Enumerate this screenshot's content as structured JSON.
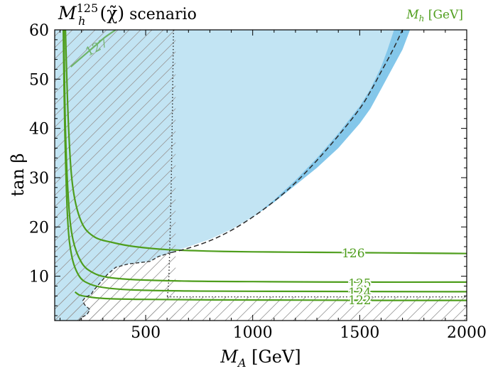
{
  "chart_data": {
    "type": "line",
    "title": "M_h^125(χ̃) scenario",
    "title_main": "M",
    "title_sub": "h",
    "title_sup": "125",
    "title_paren": "(χ̃)",
    "title_rest": " scenario",
    "xlabel_main": "M",
    "xlabel_sub": "A",
    "xlabel_unit": " [GeV]",
    "ylabel": "tan β",
    "xlim": [
      75,
      2000
    ],
    "ylim": [
      1,
      60
    ],
    "xticks": [
      500,
      1000,
      1500,
      2000
    ],
    "xtick_labels": [
      "500",
      "1000",
      "1500",
      "2000"
    ],
    "yticks": [
      10,
      20,
      30,
      40,
      50,
      60
    ],
    "ytick_labels": [
      "10",
      "20",
      "30",
      "40",
      "50",
      "60"
    ],
    "legend_main": "M",
    "legend_sub": "h",
    "legend_unit": " [GeV]",
    "colors": {
      "excluded_fill": "#c2e4f3",
      "band_fill": "#84c7ea",
      "contour": "#4f9e1d",
      "contour_light": "#6fb46a",
      "hatch": "#9a9a9a",
      "boundary": "#2b2b2b",
      "axis": "#000000"
    },
    "excluded_region_upper": {
      "x": [
        640,
        700,
        800,
        900,
        1000,
        1100,
        1200,
        1300,
        1400,
        1500,
        1550,
        1600,
        1630,
        1660
      ],
      "y": [
        15.2,
        16.0,
        17.5,
        19.5,
        22.0,
        25.5,
        29.5,
        34.0,
        39.0,
        44.5,
        48.0,
        52.5,
        56.0,
        60.0
      ]
    },
    "excluded_region_band_outer": {
      "x": [
        640,
        700,
        800,
        900,
        1000,
        1100,
        1200,
        1300,
        1400,
        1500,
        1550,
        1600,
        1650,
        1700,
        1735
      ],
      "y": [
        15.2,
        16.0,
        17.5,
        19.5,
        22.0,
        25.0,
        28.5,
        32.0,
        36.0,
        41.0,
        44.0,
        48.0,
        52.0,
        56.0,
        60.0
      ]
    },
    "expected_exclusion_dashed": {
      "x": [
        620,
        700,
        800,
        900,
        1000,
        1100,
        1200,
        1300,
        1400,
        1500,
        1550,
        1600,
        1650,
        1700
      ],
      "y": [
        14.8,
        15.7,
        17.2,
        19.3,
        22.0,
        25.2,
        29.0,
        33.5,
        38.5,
        44.0,
        47.5,
        51.5,
        55.5,
        60.0
      ]
    },
    "excluded_region_lower_boundary": {
      "x": [
        620,
        560,
        520,
        480,
        420,
        360,
        320,
        290,
        270,
        255,
        245,
        232,
        220,
        205,
        215,
        240,
        225,
        200,
        190
      ],
      "y": [
        14.8,
        14.0,
        13.0,
        12.8,
        12.5,
        11.8,
        10.3,
        8.8,
        7.8,
        7.0,
        6.3,
        6.0,
        5.8,
        5.0,
        4.2,
        3.2,
        2.2,
        1.6,
        1.0
      ]
    },
    "hatched_region": {
      "x_max_upper": 640,
      "y_max_lower": 5.8,
      "boundary_dotted_x": [
        630,
        620,
        610,
        604,
        600
      ],
      "boundary_dotted_y": [
        60,
        30,
        12,
        7,
        5.8
      ]
    },
    "contours": [
      {
        "name": "126",
        "label": "126",
        "label_at": [
          1470,
          14.7
        ],
        "x": [
          125,
          140,
          160,
          200,
          260,
          350,
          450,
          600,
          800,
          1000,
          1300,
          1600,
          2000
        ],
        "y": [
          60,
          40,
          28,
          21,
          18.0,
          16.8,
          16.0,
          15.4,
          15.1,
          14.95,
          14.85,
          14.75,
          14.6
        ]
      },
      {
        "name": "125",
        "label": "125",
        "label_at": [
          1500,
          8.6
        ],
        "x": [
          118,
          125,
          140,
          160,
          200,
          250,
          320,
          450,
          700,
          1000,
          1500,
          2000
        ],
        "y": [
          60,
          40,
          25,
          17.5,
          12.8,
          10.8,
          9.8,
          9.3,
          9.0,
          8.9,
          8.8,
          8.8
        ]
      },
      {
        "name": "124",
        "label": "124",
        "label_at": [
          1500,
          6.8
        ],
        "x": [
          115,
          122,
          135,
          155,
          190,
          240,
          320,
          450,
          700,
          1000,
          1500,
          2000
        ],
        "y": [
          60,
          40,
          22,
          14.0,
          10.0,
          8.4,
          7.6,
          7.2,
          7.0,
          6.95,
          6.9,
          6.85
        ]
      },
      {
        "name": "122",
        "label": "122",
        "label_at": [
          1500,
          5.2
        ],
        "x": [
          170,
          190,
          220,
          270,
          350,
          500,
          800,
          1200,
          1600,
          2000
        ],
        "y": [
          6.8,
          6.2,
          5.9,
          5.6,
          5.4,
          5.3,
          5.2,
          5.15,
          5.1,
          5.1
        ]
      },
      {
        "name": "127",
        "label": "127",
        "label_at": [
          270,
          56.5
        ],
        "x": [
          150,
          190,
          230,
          270,
          310,
          360
        ],
        "y": [
          52.5,
          54.0,
          55.5,
          57.0,
          58.5,
          60.0
        ]
      }
    ],
    "dotted_horizontal": {
      "y": 5.8,
      "x_from": 600,
      "x_to": 2000
    }
  }
}
